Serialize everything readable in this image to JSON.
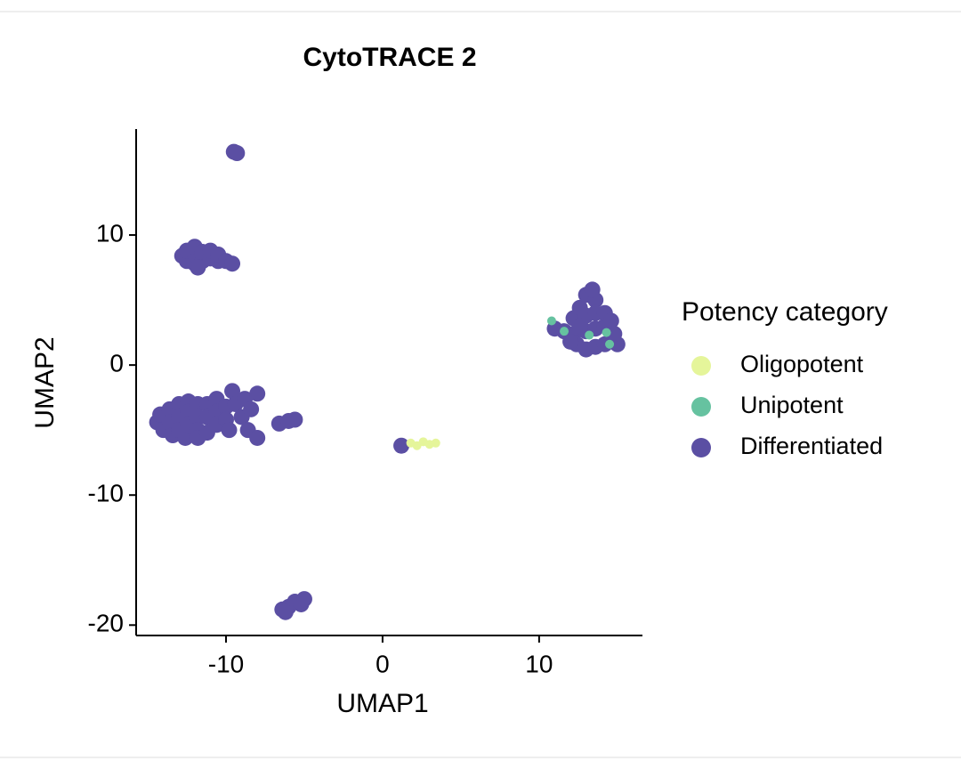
{
  "chart_data": {
    "type": "scatter",
    "title": "CytoTRACE 2",
    "x_label": "UMAP1",
    "y_label": "UMAP2",
    "xlim": [
      -15.74,
      16.6
    ],
    "ylim": [
      -20.8,
      18.15
    ],
    "xticks": [
      -10,
      0,
      10
    ],
    "yticks": [
      -20,
      -10,
      0,
      10
    ],
    "legend_title": "Potency category",
    "legend_position": "right",
    "grid": false,
    "series": [
      {
        "name": "Oligopotent",
        "color": "#e5f59a",
        "x": [
          1.8,
          2.6,
          3.0,
          3.4,
          2.2
        ],
        "y": [
          -6.0,
          -5.9,
          -6.1,
          -6.0,
          -6.2
        ]
      },
      {
        "name": "Unipotent",
        "color": "#66c2a0",
        "x": [
          10.8,
          11.6,
          13.2,
          14.3,
          14.5
        ],
        "y": [
          3.4,
          2.6,
          2.3,
          2.5,
          1.6
        ]
      },
      {
        "name": "Differentiated",
        "color": "#5b4fa3",
        "x": [
          -9.5,
          -9.3,
          -12.8,
          -12.5,
          -12.5,
          -12.0,
          -12.0,
          -12.0,
          -11.5,
          -11.5,
          -11.0,
          -11.0,
          -10.5,
          -10.5,
          -10.0,
          -9.6,
          -11.8,
          -14.4,
          -14.2,
          -14.0,
          -13.6,
          -13.6,
          -13.4,
          -13.0,
          -13.0,
          -13.0,
          -12.6,
          -12.4,
          -12.4,
          -12.4,
          -11.8,
          -11.8,
          -11.8,
          -11.8,
          -11.2,
          -11.2,
          -11.2,
          -10.6,
          -10.6,
          -10.6,
          -10.0,
          -10.0,
          -9.6,
          -9.4,
          -9.0,
          -8.8,
          -8.4,
          -8.0,
          -8.6,
          -8.0,
          -9.8,
          -6.6,
          -6.0,
          -5.6,
          -6.4,
          -6.0,
          -5.6,
          -5.2,
          -5.0,
          -6.2,
          1.2,
          11.0,
          11.6,
          12.2,
          12.2,
          12.4,
          12.6,
          13.0,
          13.0,
          13.0,
          13.0,
          13.6,
          13.6,
          13.6,
          13.6,
          14.2,
          14.2,
          14.2,
          14.6,
          15.0,
          14.8,
          12.6,
          13.4,
          12.0
        ],
        "y": [
          16.4,
          16.3,
          8.4,
          8.0,
          8.8,
          7.8,
          8.5,
          9.1,
          8.0,
          8.7,
          8.2,
          8.8,
          8.0,
          8.5,
          8.0,
          7.8,
          7.5,
          -4.4,
          -3.8,
          -5.0,
          -3.4,
          -4.4,
          -5.4,
          -3.0,
          -4.0,
          -5.0,
          -5.6,
          -2.8,
          -3.6,
          -4.6,
          -3.0,
          -4.0,
          -5.0,
          -5.6,
          -3.0,
          -4.0,
          -5.2,
          -2.6,
          -3.6,
          -4.6,
          -3.2,
          -4.2,
          -2.0,
          -3.0,
          -4.0,
          -2.6,
          -3.4,
          -2.2,
          -5.0,
          -5.6,
          -5.0,
          -4.5,
          -4.3,
          -4.2,
          -18.8,
          -18.6,
          -18.2,
          -18.4,
          -18.0,
          -19.0,
          -6.2,
          2.8,
          2.6,
          2.4,
          3.6,
          1.6,
          4.4,
          5.4,
          1.2,
          2.6,
          3.8,
          5.0,
          1.4,
          2.8,
          4.0,
          4.0,
          3.0,
          1.6,
          3.4,
          1.6,
          2.4,
          3.0,
          5.8,
          1.8
        ]
      }
    ]
  }
}
